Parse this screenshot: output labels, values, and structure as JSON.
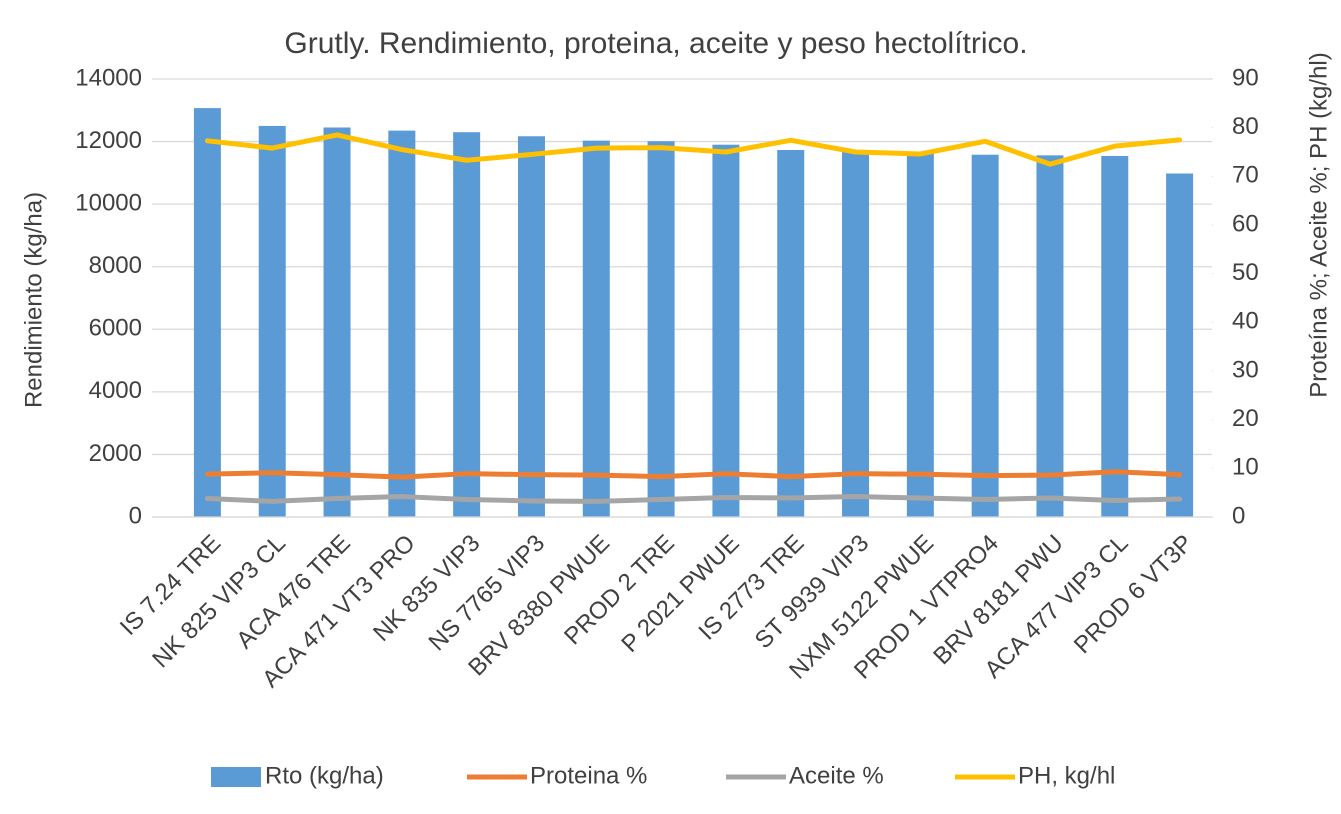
{
  "chart_data": {
    "type": "bar_line",
    "title": "Grutly. Rendimiento, proteina, aceite y peso hectolítrico.",
    "ylabel": "Rendimiento (kg/ha)",
    "y2label": "Proteína %; Aceite %; PH (kg/hl)",
    "categories": [
      "IS 7.24 TRE",
      "NK 825 VIP3 CL",
      "ACA 476 TRE",
      "ACA 471 VT3 PRO",
      "NK 835 VIP3",
      "NS 7765 VIP3",
      "BRV 8380 PWUE",
      "PROD 2 TRE",
      "P 2021 PWUE",
      "IS 2773 TRE",
      "ST 9939 VIP3",
      "NXM 5122 PWUE",
      "PROD 1 VTPRO4",
      "BRV 8181 PWU",
      "ACA 477 VIP3 CL",
      "PROD 6 VT3P"
    ],
    "series": [
      {
        "name": "Rto (kg/ha)",
        "color": "#5b9bd5",
        "kind": "bar",
        "values": [
          13070,
          12500,
          12450,
          12350,
          12300,
          12170,
          12030,
          12010,
          11900,
          11730,
          11680,
          11620,
          11580,
          11560,
          11540,
          10980
        ]
      },
      {
        "name": "Proteina %",
        "color": "#ed7d31",
        "kind": "line",
        "axis": "y2",
        "values": [
          8.8,
          9.1,
          8.7,
          8.2,
          8.9,
          8.7,
          8.6,
          8.3,
          8.9,
          8.3,
          8.9,
          8.8,
          8.5,
          8.6,
          9.3,
          8.7
        ]
      },
      {
        "name": "Aceite %",
        "color": "#a5a5a5",
        "kind": "line",
        "axis": "y2",
        "values": [
          3.8,
          3.2,
          3.8,
          4.2,
          3.6,
          3.3,
          3.2,
          3.6,
          4.0,
          3.9,
          4.2,
          3.9,
          3.6,
          3.9,
          3.4,
          3.7
        ]
      },
      {
        "name": "PH, kg/hl",
        "color": "#ffc000",
        "kind": "line",
        "axis": "y2",
        "values": [
          77.3,
          75.8,
          78.5,
          75.5,
          73.3,
          74.5,
          75.8,
          75.9,
          75.0,
          77.4,
          75.0,
          74.6,
          77.2,
          72.5,
          76.2,
          77.5
        ]
      }
    ],
    "ylim": [
      0,
      14000
    ],
    "yticks": [
      0,
      2000,
      4000,
      6000,
      8000,
      10000,
      12000,
      14000
    ],
    "y2lim": [
      0,
      90
    ],
    "y2ticks": [
      0,
      10,
      20,
      30,
      40,
      50,
      60,
      70,
      80,
      90
    ],
    "grid": true,
    "legend": "bottom"
  }
}
